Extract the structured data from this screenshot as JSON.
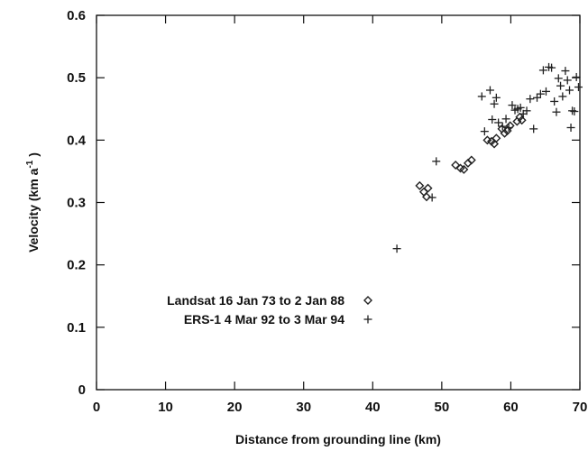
{
  "chart_data": {
    "type": "scatter",
    "title": "",
    "xlabel": "Distance from grounding line (km)",
    "ylabel_main": "Velocity (km a",
    "ylabel_exp": "-1",
    "ylabel_close": " )",
    "xlim": [
      0,
      70
    ],
    "ylim": [
      0,
      0.6
    ],
    "x_ticks": [
      0,
      10,
      20,
      30,
      40,
      50,
      60,
      70
    ],
    "x_tick_labels": [
      "0",
      "10",
      "20",
      "30",
      "40",
      "50",
      "60",
      "70"
    ],
    "y_ticks": [
      0,
      0.1,
      0.2,
      0.3,
      0.4,
      0.5,
      0.6
    ],
    "y_tick_labels": [
      "0",
      "0.1",
      "0.2",
      "0.3",
      "0.4",
      "0.5",
      "0.6"
    ],
    "grid": false,
    "legend_position": "lower-left",
    "series": [
      {
        "name": "Landsat 16 Jan 73 to 2 Jan 88",
        "marker": "diamond",
        "points": [
          [
            46.8,
            0.327
          ],
          [
            47.4,
            0.317
          ],
          [
            47.8,
            0.309
          ],
          [
            48.0,
            0.323
          ],
          [
            52.0,
            0.36
          ],
          [
            52.7,
            0.355
          ],
          [
            53.2,
            0.353
          ],
          [
            53.8,
            0.363
          ],
          [
            54.3,
            0.368
          ],
          [
            56.6,
            0.4
          ],
          [
            57.2,
            0.398
          ],
          [
            57.6,
            0.394
          ],
          [
            57.9,
            0.403
          ],
          [
            58.7,
            0.418
          ],
          [
            59.1,
            0.411
          ],
          [
            59.5,
            0.415
          ],
          [
            59.9,
            0.423
          ],
          [
            60.9,
            0.43
          ],
          [
            61.3,
            0.437
          ],
          [
            61.6,
            0.432
          ]
        ]
      },
      {
        "name": "ERS-1 4 Mar 92 to 3 Mar 94",
        "marker": "plus",
        "points": [
          [
            43.5,
            0.226
          ],
          [
            48.6,
            0.308
          ],
          [
            49.2,
            0.366
          ],
          [
            55.8,
            0.47
          ],
          [
            56.2,
            0.414
          ],
          [
            57.0,
            0.48
          ],
          [
            57.3,
            0.433
          ],
          [
            57.6,
            0.458
          ],
          [
            57.9,
            0.468
          ],
          [
            58.2,
            0.428
          ],
          [
            58.8,
            0.422
          ],
          [
            59.3,
            0.434
          ],
          [
            59.7,
            0.42
          ],
          [
            60.2,
            0.456
          ],
          [
            60.6,
            0.448
          ],
          [
            61.0,
            0.45
          ],
          [
            61.4,
            0.452
          ],
          [
            61.8,
            0.442
          ],
          [
            62.3,
            0.447
          ],
          [
            62.8,
            0.466
          ],
          [
            63.3,
            0.418
          ],
          [
            63.8,
            0.468
          ],
          [
            64.3,
            0.474
          ],
          [
            64.7,
            0.512
          ],
          [
            65.1,
            0.478
          ],
          [
            65.5,
            0.517
          ],
          [
            65.9,
            0.516
          ],
          [
            66.3,
            0.462
          ],
          [
            66.6,
            0.445
          ],
          [
            66.9,
            0.499
          ],
          [
            67.2,
            0.487
          ],
          [
            67.5,
            0.47
          ],
          [
            67.9,
            0.511
          ],
          [
            68.2,
            0.496
          ],
          [
            68.5,
            0.48
          ],
          [
            68.7,
            0.42
          ],
          [
            68.9,
            0.447
          ],
          [
            69.2,
            0.446
          ],
          [
            69.5,
            0.501
          ],
          [
            69.8,
            0.485
          ]
        ]
      }
    ]
  }
}
